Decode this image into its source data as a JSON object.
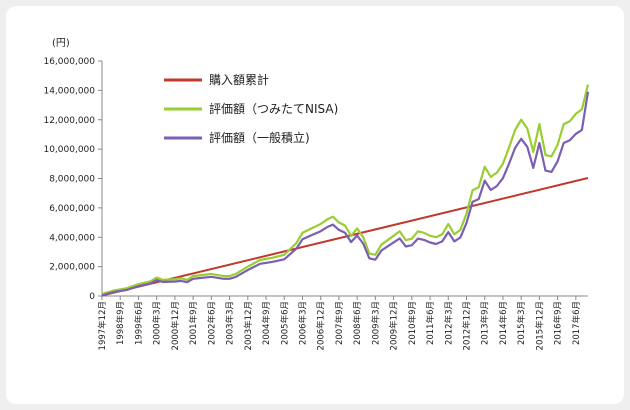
{
  "chart_data": {
    "type": "line",
    "unit_label": "(円)",
    "ylim": [
      0,
      16000000
    ],
    "y_ticks": [
      0,
      2000000,
      4000000,
      6000000,
      8000000,
      10000000,
      12000000,
      14000000,
      16000000
    ],
    "y_tick_labels": [
      "0",
      "2,000,000",
      "4,000,000",
      "6,000,000",
      "8,000,000",
      "10,000,000",
      "12,000,000",
      "14,000,000",
      "16,000,000"
    ],
    "x_tick_labels": [
      "1997年12月",
      "1998年9月",
      "1999年6月",
      "2000年3月",
      "2000年12月",
      "2001年9月",
      "2002年6月",
      "2003年3月",
      "2003年12月",
      "2004年9月",
      "2005年6月",
      "2006年3月",
      "2006年12月",
      "2007年9月",
      "2008年6月",
      "2009年3月",
      "2009年12月",
      "2010年9月",
      "2011年6月",
      "2012年3月",
      "2012年12月",
      "2013年9月",
      "2014年6月",
      "2015年3月",
      "2015年12月",
      "2016年9月",
      "2017年6月"
    ],
    "x_start": "1997-12",
    "x_end": "2017-12",
    "legend_position": "top-left",
    "grid": false,
    "series": [
      {
        "name": "購入額累計",
        "color": "#c0392b",
        "x": [
          "1997-12",
          "2017-12"
        ],
        "values": [
          33333,
          8033333
        ]
      },
      {
        "name": "評価額（つみたてNISA)",
        "color": "#9acd32",
        "x": [
          "1997-12",
          "1998-06",
          "1998-12",
          "1999-06",
          "1999-12",
          "2000-03",
          "2000-06",
          "2000-12",
          "2001-03",
          "2001-06",
          "2001-09",
          "2001-12",
          "2002-06",
          "2002-12",
          "2003-03",
          "2003-06",
          "2003-12",
          "2004-06",
          "2004-12",
          "2005-06",
          "2005-12",
          "2006-03",
          "2006-06",
          "2006-12",
          "2007-03",
          "2007-06",
          "2007-09",
          "2007-12",
          "2008-03",
          "2008-06",
          "2008-09",
          "2008-12",
          "2009-03",
          "2009-06",
          "2009-12",
          "2010-03",
          "2010-06",
          "2010-09",
          "2010-12",
          "2011-03",
          "2011-06",
          "2011-09",
          "2011-12",
          "2012-03",
          "2012-06",
          "2012-09",
          "2012-12",
          "2013-03",
          "2013-06",
          "2013-09",
          "2013-12",
          "2014-03",
          "2014-06",
          "2014-09",
          "2014-12",
          "2015-03",
          "2015-06",
          "2015-09",
          "2015-12",
          "2016-03",
          "2016-06",
          "2016-09",
          "2016-12",
          "2017-03",
          "2017-06",
          "2017-09",
          "2017-12"
        ],
        "values": [
          40000,
          280000,
          420000,
          700000,
          900000,
          1150000,
          1000000,
          1050000,
          1100000,
          1000000,
          1250000,
          1300000,
          1400000,
          1250000,
          1250000,
          1400000,
          1900000,
          2350000,
          2500000,
          2700000,
          3500000,
          4200000,
          4400000,
          4800000,
          5100000,
          5300000,
          4900000,
          4700000,
          4000000,
          4500000,
          3900000,
          2800000,
          2700000,
          3400000,
          4000000,
          4300000,
          3700000,
          3800000,
          4300000,
          4200000,
          4000000,
          3900000,
          4100000,
          4800000,
          4100000,
          4400000,
          5500000,
          7100000,
          7300000,
          8700000,
          8000000,
          8300000,
          8900000,
          10000000,
          11200000,
          11900000,
          11300000,
          9700000,
          11600000,
          9500000,
          9400000,
          10200000,
          11600000,
          11800000,
          12300000,
          12600000,
          14300000
        ]
      },
      {
        "name": "評価額（一般積立)",
        "color": "#7b5fb3",
        "x": [
          "1997-12",
          "1998-06",
          "1998-12",
          "1999-06",
          "1999-12",
          "2000-03",
          "2000-06",
          "2000-12",
          "2001-03",
          "2001-06",
          "2001-09",
          "2001-12",
          "2002-06",
          "2002-12",
          "2003-03",
          "2003-06",
          "2003-12",
          "2004-06",
          "2004-12",
          "2005-06",
          "2005-12",
          "2006-03",
          "2006-06",
          "2006-12",
          "2007-03",
          "2007-06",
          "2007-09",
          "2007-12",
          "2008-03",
          "2008-06",
          "2008-09",
          "2008-12",
          "2009-03",
          "2009-06",
          "2009-12",
          "2010-03",
          "2010-06",
          "2010-09",
          "2010-12",
          "2011-03",
          "2011-06",
          "2011-09",
          "2011-12",
          "2012-03",
          "2012-06",
          "2012-09",
          "2012-12",
          "2013-03",
          "2013-06",
          "2013-09",
          "2013-12",
          "2014-03",
          "2014-06",
          "2014-09",
          "2014-12",
          "2015-03",
          "2015-06",
          "2015-09",
          "2015-12",
          "2016-03",
          "2016-06",
          "2016-09",
          "2016-12",
          "2017-03",
          "2017-06",
          "2017-09",
          "2017-12"
        ],
        "values": [
          40000,
          270000,
          400000,
          670000,
          860000,
          1080000,
          950000,
          990000,
          1030000,
          940000,
          1170000,
          1220000,
          1310000,
          1170000,
          1170000,
          1300000,
          1770000,
          2190000,
          2320000,
          2500000,
          3230000,
          3870000,
          4050000,
          4410000,
          4680000,
          4860000,
          4500000,
          4310000,
          3670000,
          4120000,
          3570000,
          2570000,
          2470000,
          3100000,
          3650000,
          3920000,
          3370000,
          3460000,
          3910000,
          3820000,
          3640000,
          3540000,
          3720000,
          4350000,
          3720000,
          3990000,
          4980000,
          6420000,
          6600000,
          7850000,
          7220000,
          7490000,
          8020000,
          9000000,
          10080000,
          10700000,
          10160000,
          8720000,
          10420000,
          8540000,
          8450000,
          9170000,
          10420000,
          10600000,
          11040000,
          11310000,
          13900000
        ]
      }
    ]
  }
}
